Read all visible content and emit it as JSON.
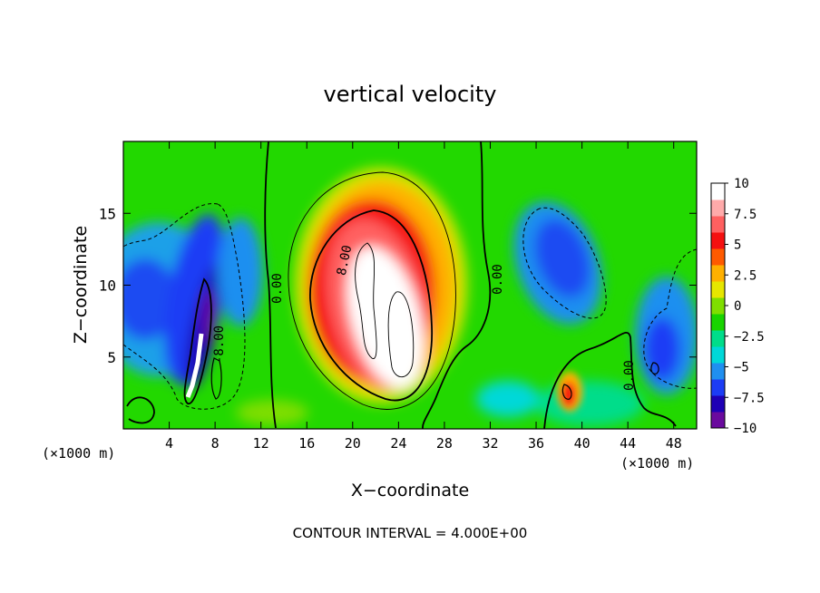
{
  "chart_data": {
    "type": "heatmap",
    "title": "vertical velocity",
    "xlabel": "X−coordinate",
    "ylabel": "Z−coordinate",
    "x_unit_label": "(×1000 m)",
    "x_unit_label_right": "(×1000 m)",
    "footer": "CONTOUR INTERVAL = 4.000E+00",
    "xlim": [
      0,
      50
    ],
    "ylim": [
      0,
      20
    ],
    "x_ticks": [
      "4",
      "8",
      "12",
      "16",
      "20",
      "24",
      "28",
      "32",
      "36",
      "40",
      "44",
      "48"
    ],
    "y_ticks": [
      "5",
      "10",
      "15"
    ],
    "colorbar": {
      "range": [
        -10,
        10
      ],
      "tick_labels": [
        "10",
        "7.5",
        "5",
        "2.5",
        "0",
        "−2.5",
        "−5",
        "−7.5",
        "−10"
      ],
      "tick_values": [
        10,
        7.5,
        5,
        2.5,
        0,
        -2.5,
        -5,
        -7.5,
        -10
      ],
      "colors": [
        "#6a0a9e",
        "#1e00b5",
        "#1c3cf5",
        "#1f8ff0",
        "#00d8d8",
        "#00dd8a",
        "#18d400",
        "#7fde00",
        "#e6e600",
        "#ffb000",
        "#ff5a00",
        "#f51010",
        "#ff6060",
        "#ffaaaa",
        "#ffffff"
      ]
    },
    "contour_labels": [
      {
        "text": "0.00"
      },
      {
        "text": "8.00"
      },
      {
        "text": "0.00"
      },
      {
        "text": "0.00"
      },
      {
        "text": "-8.00"
      }
    ],
    "features": [
      {
        "name": "updraft-core",
        "x": 22.5,
        "z": 9,
        "peak": 14
      },
      {
        "name": "updraft-shoulder",
        "x": 18,
        "z": 10,
        "peak": 8
      },
      {
        "name": "downdraft-west",
        "x": 7,
        "z": 7,
        "peak": -11
      },
      {
        "name": "downdraft-west-broad",
        "x": 5,
        "z": 9,
        "peak": -6
      },
      {
        "name": "downdraft-east",
        "x": 38,
        "z": 12,
        "peak": -6
      },
      {
        "name": "downdraft-far-east",
        "x": 47,
        "z": 6,
        "peak": -7
      },
      {
        "name": "updraft-small",
        "x": 38.5,
        "z": 3,
        "peak": 7
      }
    ]
  }
}
